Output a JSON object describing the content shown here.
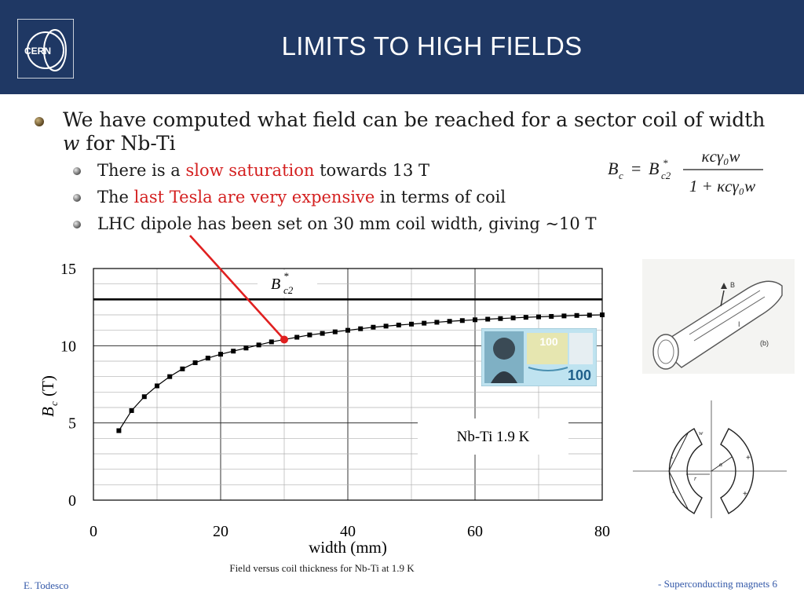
{
  "slide": {
    "title": "LIMITS TO HIGH FIELDS",
    "logo_text": "CERN",
    "bullets": {
      "main_part1": "We have computed what field can be reached for a sector coil of width ",
      "main_w": "w",
      "main_part2": " for Nb-Ti",
      "sub1_pre": "There is a ",
      "sub1_red": "slow saturation",
      "sub1_post": " towards 13 T",
      "sub2_pre": "The ",
      "sub2_red": "last Tesla are very expensive",
      "sub2_post": " in terms of coil",
      "sub3": "LHC dipole has been set on 30 mm coil width, giving ~10 T"
    },
    "formula": {
      "lhs": "B",
      "lhs_sub": "c",
      "rhs_b": "B",
      "rhs_sub": "c2",
      "rhs_sup": "*",
      "numerator": "κcγ₀w",
      "denominator": "1 + κcγ₀w"
    },
    "caption": "Field versus coil thickness for Nb-Ti at 1.9 K",
    "footer_left": "E. Todesco",
    "footer_right": "- Superconducting magnets 6",
    "banknote_value": "100"
  },
  "colors": {
    "header": "#1f3864",
    "accent_red": "#d42020",
    "footer_text": "#3358a8"
  },
  "chart_data": {
    "type": "scatter",
    "xlabel": "width (mm)",
    "ylabel_main": "B",
    "ylabel_sub": "c",
    "ylabel_unit": "(T)",
    "xlim": [
      0,
      80
    ],
    "ylim": [
      0,
      15
    ],
    "x_ticks": [
      "0",
      "20",
      "40",
      "60",
      "80"
    ],
    "y_ticks": [
      "0",
      "5",
      "10",
      "15"
    ],
    "grid": true,
    "series": [
      {
        "name": "",
        "x": [
          4,
          6,
          8,
          10,
          12,
          14,
          16,
          18,
          20,
          22,
          24,
          26,
          28,
          30,
          32,
          34,
          36,
          38,
          40,
          42,
          44,
          46,
          48,
          50,
          52,
          54,
          56,
          58,
          60,
          62,
          64,
          66,
          68,
          70,
          72,
          74,
          76,
          78,
          80
        ],
        "y": [
          4.5,
          5.8,
          6.7,
          7.4,
          8.0,
          8.5,
          8.9,
          9.2,
          9.45,
          9.65,
          9.85,
          10.05,
          10.25,
          10.4,
          10.55,
          10.7,
          10.8,
          10.9,
          11.0,
          11.1,
          11.2,
          11.27,
          11.34,
          11.4,
          11.46,
          11.52,
          11.58,
          11.63,
          11.68,
          11.72,
          11.76,
          11.8,
          11.84,
          11.87,
          11.9,
          11.93,
          11.96,
          11.98,
          12.0
        ]
      }
    ],
    "asymptote": {
      "y": 13.0,
      "label_main": "B",
      "label_sup": "*",
      "label_sub": "c2"
    },
    "highlight": {
      "x": 30,
      "y": 10.4
    },
    "annotation_box": "Nb-Ti 1.9 K"
  }
}
